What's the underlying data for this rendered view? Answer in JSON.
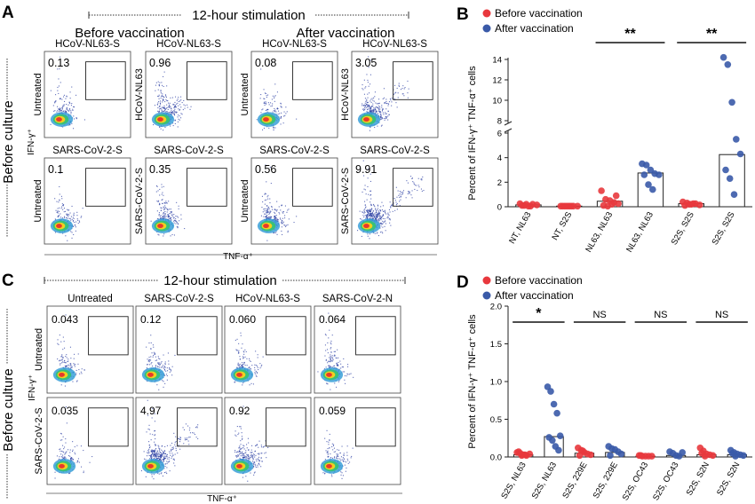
{
  "panel_a": {
    "letter": "A",
    "stim_label": "12-hour stimulation",
    "group_before": "Before vaccination",
    "group_after": "After vaccination",
    "side_label": "Before culture",
    "y_axis": "IFN-γ⁺",
    "x_axis": "TNF-α⁺",
    "plots": [
      {
        "title": "HCoV-NL63-S",
        "row_label": "Untreated",
        "value": "0.13",
        "density": 0.13
      },
      {
        "title": "HCoV-NL63-S",
        "row_label": "HCoV-NL63",
        "value": "0.96",
        "density": 0.96
      },
      {
        "title": "HCoV-NL63-S",
        "row_label": "Untreated",
        "value": "0.08",
        "density": 0.08
      },
      {
        "title": "HCoV-NL63-S",
        "row_label": "HCoV-NL63",
        "value": "3.05",
        "density": 3.05
      },
      {
        "title": "SARS-CoV-2-S",
        "row_label": "Untreated",
        "value": "0.1",
        "density": 0.1
      },
      {
        "title": "SARS-CoV-2-S",
        "row_label": "SARS-CoV-2-S",
        "value": "0.35",
        "density": 0.35
      },
      {
        "title": "SARS-CoV-2-S",
        "row_label": "Untreated",
        "value": "0.56",
        "density": 0.56
      },
      {
        "title": "SARS-CoV-2-S",
        "row_label": "SARS-CoV-2-S",
        "value": "9.91",
        "density": 9.91
      }
    ]
  },
  "panel_c": {
    "letter": "C",
    "stim_label": "12-hour stimulation",
    "side_label": "Before culture",
    "y_axis": "IFN-γ⁺",
    "x_axis": "TNF-α⁺",
    "col_titles": [
      "Untreated",
      "SARS-CoV-2-S",
      "HCoV-NL63-S",
      "SARS-CoV-2-N"
    ],
    "row_labels": [
      "Untreated",
      "SARS-CoV-2-S"
    ],
    "plots": [
      {
        "value": "0.043",
        "density": 0.043
      },
      {
        "value": "0.12",
        "density": 0.12
      },
      {
        "value": "0.060",
        "density": 0.06
      },
      {
        "value": "0.064",
        "density": 0.064
      },
      {
        "value": "0.035",
        "density": 0.035
      },
      {
        "value": "4.97",
        "density": 4.97
      },
      {
        "value": "0.92",
        "density": 0.92
      },
      {
        "value": "0.059",
        "density": 0.059
      }
    ]
  },
  "colors": {
    "before": "#e8383d",
    "after": "#3a5aa8",
    "gate": "#222222"
  },
  "chart_data": [
    {
      "id": "B",
      "type": "scatter",
      "legend": [
        "Before vaccination",
        "After vaccination"
      ],
      "legend_position": "top",
      "ylabel": "Percent of IFN-γ⁺ TNF-α⁺ cells",
      "ylim": [
        0,
        14
      ],
      "axis_break": [
        6,
        8
      ],
      "yticks": [
        0,
        2,
        4,
        6,
        8,
        10,
        12,
        14
      ],
      "categories": [
        "NT, NL63",
        "NT, S2S",
        "NL63, NL63",
        "NL63, NL63",
        "S2S, S2S",
        "S2S, S2S"
      ],
      "groups": [
        "before",
        "before",
        "before",
        "after",
        "before",
        "after"
      ],
      "bar_values": [
        0.15,
        0.05,
        0.45,
        2.75,
        0.25,
        4.25
      ],
      "points": [
        [
          0.25,
          0.1,
          0.05,
          0.2,
          0.15,
          0.1,
          0.2,
          0.05
        ],
        [
          0.05,
          0.05,
          0.05,
          0.05,
          0.05,
          0.05,
          0.05,
          0.05
        ],
        [
          1.3,
          0.6,
          0.5,
          0.35,
          0.25,
          0.1,
          0.05,
          0.2,
          0.9
        ],
        [
          3.5,
          3.4,
          3.0,
          2.7,
          2.6,
          2.6,
          1.8,
          1.4
        ],
        [
          0.4,
          0.3,
          0.2,
          0.25,
          0.15,
          0.1,
          0.2,
          0.25
        ],
        [
          14.2,
          13.5,
          9.8,
          5.5,
          4.3,
          3.0,
          2.3,
          1.0
        ]
      ],
      "annotations": [
        {
          "between": [
            2,
            3
          ],
          "label": "**"
        },
        {
          "between": [
            4,
            5
          ],
          "label": "**"
        }
      ]
    },
    {
      "id": "D",
      "type": "scatter",
      "legend": [
        "Before vaccination",
        "After vaccination"
      ],
      "legend_position": "top",
      "ylabel": "Percent of IFN-γ⁺ TNF-α⁺ cells",
      "ylim": [
        0,
        2.0
      ],
      "yticks": [
        0.0,
        0.5,
        1.0,
        1.5,
        2.0
      ],
      "categories": [
        "S2S, NL63",
        "S2S, NL63",
        "S2S, 229E",
        "S2S, 229E",
        "S2S, OC43",
        "S2S, OC43",
        "S2S, S2N",
        "S2S, S2N"
      ],
      "groups": [
        "before",
        "after",
        "before",
        "after",
        "before",
        "after",
        "before",
        "after"
      ],
      "bar_values": [
        0.03,
        0.27,
        0.05,
        0.06,
        0.01,
        0.02,
        0.03,
        0.03
      ],
      "points": [
        [
          0.06,
          0.05,
          0.03,
          0.02,
          0.04,
          0.07,
          0.02,
          0.03
        ],
        [
          0.93,
          0.87,
          0.7,
          0.58,
          0.28,
          0.26,
          0.22,
          0.14,
          0.09
        ],
        [
          0.12,
          0.09,
          0.06,
          0.04,
          0.03,
          0.02,
          0.08
        ],
        [
          0.14,
          0.11,
          0.1,
          0.07,
          0.04,
          0.02
        ],
        [
          0.02,
          0.01,
          0.01,
          0.01,
          0.01,
          0.02
        ],
        [
          0.07,
          0.05,
          0.02,
          0.01,
          0.06
        ],
        [
          0.12,
          0.08,
          0.04,
          0.03,
          0.02,
          0.05,
          0.01
        ],
        [
          0.09,
          0.06,
          0.04,
          0.03,
          0.02,
          0.05,
          0.01
        ]
      ],
      "annotations": [
        {
          "between": [
            0,
            1
          ],
          "label": "*"
        },
        {
          "between": [
            2,
            3
          ],
          "label": "NS"
        },
        {
          "between": [
            4,
            5
          ],
          "label": "NS"
        },
        {
          "between": [
            6,
            7
          ],
          "label": "NS"
        }
      ]
    }
  ]
}
